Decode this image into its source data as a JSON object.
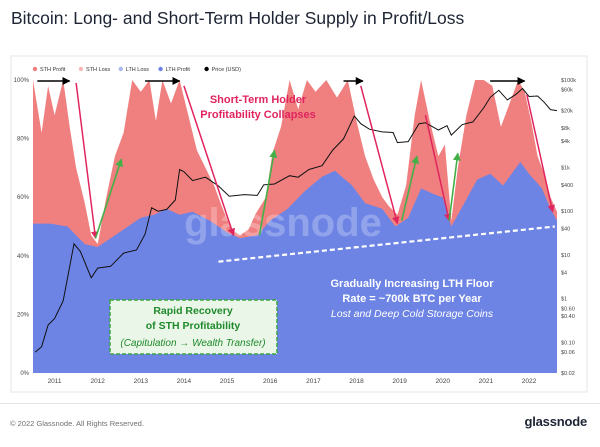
{
  "page": {
    "title": "Bitcoin: Long- and Short-Term Holder Supply in Profit/Loss",
    "copyright": "© 2022 Glassnode. All Rights Reserved.",
    "brand": "glassnode",
    "watermark": "glassnode"
  },
  "colors": {
    "sth_profit": "#f08080",
    "sth_loss": "#f7b6b6",
    "lth_loss": "#a9b8ee",
    "lth_profit": "#6d84e4",
    "price": "#000000",
    "annotation_red": "#e0245e",
    "annotation_green": "#43b047",
    "green_box_border": "#3aa441",
    "green_box_bg": "#eaf6e8",
    "green_text": "#1e8a2b",
    "white_text": "#ffffff"
  },
  "chart_data": {
    "type": "area",
    "legend": {
      "placement": "top-left",
      "items": [
        {
          "label": "STH Profit",
          "color_key": "sth_profit"
        },
        {
          "label": "STH Loss",
          "color_key": "sth_loss"
        },
        {
          "label": "LTH Loss",
          "color_key": "lth_loss"
        },
        {
          "label": "LTH Profit",
          "color_key": "lth_profit"
        },
        {
          "label": "Price (USD)",
          "color_key": "price"
        }
      ]
    },
    "x_ticks": [
      "2011",
      "2012",
      "2013",
      "2014",
      "2015",
      "2016",
      "2017",
      "2018",
      "2019",
      "2020",
      "2021",
      "2022"
    ],
    "x_range": [
      2010.5,
      2022.65
    ],
    "y_ticks_left": [
      "0%",
      "20%",
      "40%",
      "60%",
      "80%",
      "100%"
    ],
    "y_range_left": [
      0,
      100
    ],
    "y_ticks_right": [
      {
        "label": "$100k",
        "value": 100000
      },
      {
        "label": "$60k",
        "value": 60000
      },
      {
        "label": "$20k",
        "value": 20000
      },
      {
        "label": "$8k",
        "value": 8000
      },
      {
        "label": "$4k",
        "value": 4000
      },
      {
        "label": "$1k",
        "value": 1000
      },
      {
        "label": "$400",
        "value": 400
      },
      {
        "label": "$100",
        "value": 100
      },
      {
        "label": "$40",
        "value": 40
      },
      {
        "label": "$10",
        "value": 10
      },
      {
        "label": "$4",
        "value": 4
      },
      {
        "label": "$1",
        "value": 1
      },
      {
        "label": "$0.60",
        "value": 0.6
      },
      {
        "label": "$0.40",
        "value": 0.4
      },
      {
        "label": "$0.10",
        "value": 0.1
      },
      {
        "label": "$0.06",
        "value": 0.06
      },
      {
        "label": "$0.02",
        "value": 0.02
      }
    ],
    "y_range_right_log": [
      0.02,
      100000
    ],
    "series": [
      {
        "name": "LTH Profit",
        "unit": "% of supply",
        "points": [
          [
            2010.5,
            51
          ],
          [
            2010.9,
            51
          ],
          [
            2011.3,
            50
          ],
          [
            2011.7,
            44
          ],
          [
            2012.0,
            43
          ],
          [
            2012.3,
            46
          ],
          [
            2012.7,
            50
          ],
          [
            2013.0,
            53
          ],
          [
            2013.3,
            54
          ],
          [
            2013.6,
            56
          ],
          [
            2013.9,
            54
          ],
          [
            2014.2,
            55
          ],
          [
            2014.6,
            52
          ],
          [
            2015.0,
            48
          ],
          [
            2015.3,
            46
          ],
          [
            2015.7,
            47
          ],
          [
            2016.0,
            52
          ],
          [
            2016.4,
            56
          ],
          [
            2016.8,
            62
          ],
          [
            2017.2,
            67
          ],
          [
            2017.5,
            69
          ],
          [
            2017.9,
            64
          ],
          [
            2018.2,
            58
          ],
          [
            2018.6,
            56
          ],
          [
            2018.9,
            50
          ],
          [
            2019.2,
            53
          ],
          [
            2019.5,
            63
          ],
          [
            2019.8,
            61
          ],
          [
            2020.0,
            60
          ],
          [
            2020.2,
            50
          ],
          [
            2020.5,
            58
          ],
          [
            2020.8,
            66
          ],
          [
            2021.1,
            68
          ],
          [
            2021.4,
            64
          ],
          [
            2021.8,
            72
          ],
          [
            2022.0,
            68
          ],
          [
            2022.3,
            63
          ],
          [
            2022.5,
            56
          ],
          [
            2022.65,
            52
          ]
        ]
      },
      {
        "name": "STH Profit",
        "unit": "% of supply",
        "points": [
          [
            2010.5,
            100
          ],
          [
            2010.7,
            82
          ],
          [
            2010.85,
            98
          ],
          [
            2011.0,
            88
          ],
          [
            2011.2,
            100
          ],
          [
            2011.35,
            84
          ],
          [
            2011.5,
            70
          ],
          [
            2011.7,
            58
          ],
          [
            2011.85,
            47
          ],
          [
            2012.0,
            44
          ],
          [
            2012.2,
            60
          ],
          [
            2012.4,
            74
          ],
          [
            2012.6,
            82
          ],
          [
            2012.8,
            100
          ],
          [
            2013.0,
            96
          ],
          [
            2013.2,
            100
          ],
          [
            2013.35,
            86
          ],
          [
            2013.5,
            100
          ],
          [
            2013.7,
            92
          ],
          [
            2013.9,
            100
          ],
          [
            2014.1,
            88
          ],
          [
            2014.3,
            76
          ],
          [
            2014.5,
            70
          ],
          [
            2014.7,
            64
          ],
          [
            2014.9,
            56
          ],
          [
            2015.1,
            49
          ],
          [
            2015.3,
            47
          ],
          [
            2015.5,
            49
          ],
          [
            2015.65,
            54
          ],
          [
            2015.9,
            60
          ],
          [
            2016.05,
            75
          ],
          [
            2016.25,
            84
          ],
          [
            2016.45,
            100
          ],
          [
            2016.65,
            90
          ],
          [
            2016.85,
            100
          ],
          [
            2017.05,
            96
          ],
          [
            2017.3,
            100
          ],
          [
            2017.55,
            94
          ],
          [
            2017.8,
            100
          ],
          [
            2018.0,
            86
          ],
          [
            2018.2,
            74
          ],
          [
            2018.4,
            66
          ],
          [
            2018.6,
            60
          ],
          [
            2018.75,
            57
          ],
          [
            2018.95,
            54
          ],
          [
            2019.15,
            64
          ],
          [
            2019.35,
            88
          ],
          [
            2019.5,
            100
          ],
          [
            2019.7,
            86
          ],
          [
            2019.9,
            74
          ],
          [
            2020.05,
            78
          ],
          [
            2020.2,
            52
          ],
          [
            2020.35,
            70
          ],
          [
            2020.55,
            88
          ],
          [
            2020.75,
            100
          ],
          [
            2020.95,
            100
          ],
          [
            2021.15,
            98
          ],
          [
            2021.35,
            84
          ],
          [
            2021.55,
            92
          ],
          [
            2021.75,
            100
          ],
          [
            2021.9,
            96
          ],
          [
            2022.05,
            86
          ],
          [
            2022.2,
            74
          ],
          [
            2022.35,
            68
          ],
          [
            2022.5,
            60
          ],
          [
            2022.65,
            55
          ]
        ]
      },
      {
        "name": "Price (USD)",
        "unit": "USD",
        "points": [
          [
            2010.55,
            0.06
          ],
          [
            2010.7,
            0.08
          ],
          [
            2010.85,
            0.25
          ],
          [
            2011.0,
            0.35
          ],
          [
            2011.2,
            0.9
          ],
          [
            2011.45,
            18
          ],
          [
            2011.6,
            12
          ],
          [
            2011.85,
            3
          ],
          [
            2012.0,
            5
          ],
          [
            2012.3,
            5.5
          ],
          [
            2012.6,
            11
          ],
          [
            2012.9,
            13
          ],
          [
            2013.1,
            30
          ],
          [
            2013.25,
            120
          ],
          [
            2013.4,
            100
          ],
          [
            2013.6,
            110
          ],
          [
            2013.8,
            180
          ],
          [
            2013.9,
            900
          ],
          [
            2014.0,
            800
          ],
          [
            2014.2,
            500
          ],
          [
            2014.5,
            600
          ],
          [
            2014.8,
            380
          ],
          [
            2015.05,
            220
          ],
          [
            2015.4,
            240
          ],
          [
            2015.7,
            230
          ],
          [
            2015.85,
            400
          ],
          [
            2016.1,
            420
          ],
          [
            2016.45,
            650
          ],
          [
            2016.65,
            600
          ],
          [
            2016.9,
            900
          ],
          [
            2017.2,
            1100
          ],
          [
            2017.45,
            2500
          ],
          [
            2017.7,
            4500
          ],
          [
            2017.95,
            15000
          ],
          [
            2018.1,
            10000
          ],
          [
            2018.3,
            7500
          ],
          [
            2018.6,
            6500
          ],
          [
            2018.85,
            6300
          ],
          [
            2018.95,
            3700
          ],
          [
            2019.2,
            3900
          ],
          [
            2019.45,
            10000
          ],
          [
            2019.6,
            10500
          ],
          [
            2019.9,
            7200
          ],
          [
            2020.1,
            9000
          ],
          [
            2020.2,
            5500
          ],
          [
            2020.45,
            9500
          ],
          [
            2020.7,
            11000
          ],
          [
            2020.95,
            23000
          ],
          [
            2021.1,
            40000
          ],
          [
            2021.3,
            58000
          ],
          [
            2021.5,
            35000
          ],
          [
            2021.7,
            47000
          ],
          [
            2021.85,
            64000
          ],
          [
            2022.0,
            42000
          ],
          [
            2022.2,
            43000
          ],
          [
            2022.35,
            31000
          ],
          [
            2022.5,
            21000
          ],
          [
            2022.65,
            20000
          ]
        ]
      }
    ],
    "annotations": {
      "sth_collapse": "Short-Term Holder\nProfitability Collapses",
      "lth_floor": "Gradually Increasing LTH Floor\nRate = ~700k BTC per Year",
      "lth_floor_sub": "Lost and Deep Cold Storage Coins",
      "recovery": "Rapid Recovery\nof STH Profitability",
      "recovery_sub": "(Capitulation → Wealth Transfer)"
    },
    "black_arrows": [
      [
        2010.6,
        2011.35
      ],
      [
        2013.1,
        2013.9
      ],
      [
        2017.7,
        2018.15
      ],
      [
        2021.1,
        2021.9
      ]
    ],
    "red_arrows": [
      [
        2011.5,
        99,
        2011.95,
        46
      ],
      [
        2014.0,
        98,
        2015.15,
        47
      ],
      [
        2018.1,
        98,
        2018.95,
        51
      ],
      [
        2019.6,
        88,
        2020.15,
        52
      ],
      [
        2021.95,
        95,
        2022.55,
        55
      ]
    ],
    "green_arrows": [
      [
        2011.95,
        46,
        2012.55,
        73
      ],
      [
        2015.75,
        47,
        2016.1,
        76
      ],
      [
        2019.05,
        52,
        2019.4,
        74
      ],
      [
        2020.15,
        52,
        2020.35,
        75
      ]
    ],
    "lth_floor_line": [
      [
        2014.8,
        38
      ],
      [
        2022.6,
        50
      ]
    ],
    "white_dotted_line": [
      [
        2014.85,
        37.5
      ],
      [
        2022.55,
        50
      ]
    ]
  }
}
